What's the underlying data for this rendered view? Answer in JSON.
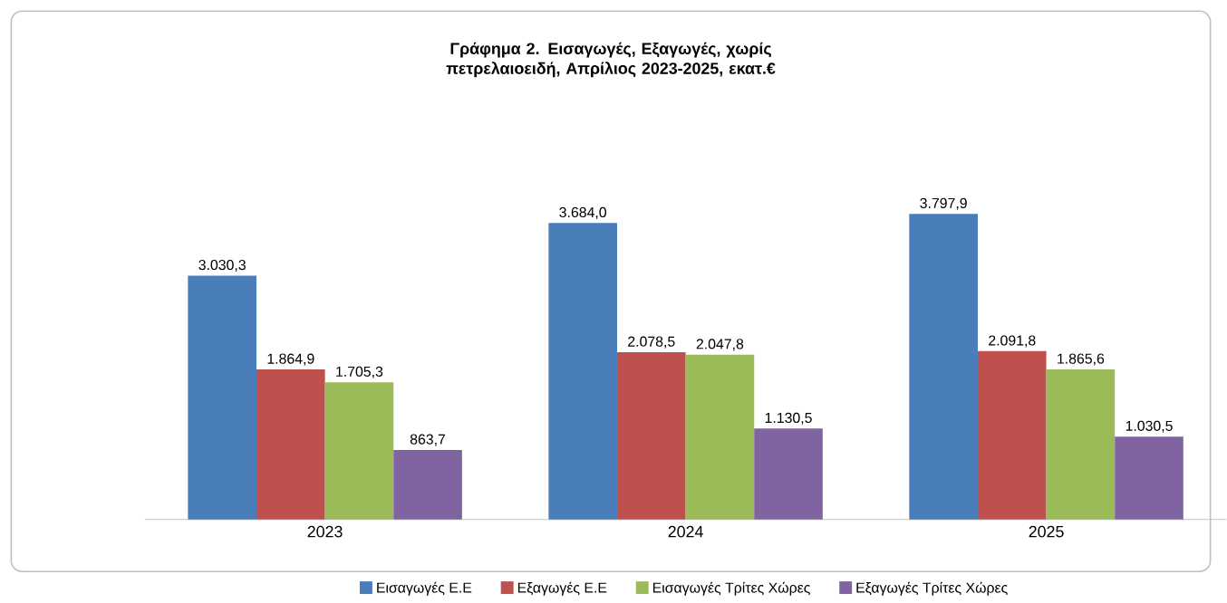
{
  "chart_data": {
    "type": "bar",
    "title": "Γράφημα 2. Εισαγωγές, Εξαγωγές, χωρίς πετρελαιοειδή, Απρίλιος 2023-2025, εκατ.€",
    "categories": [
      "2023",
      "2024",
      "2025"
    ],
    "series": [
      {
        "name": "Εισαγωγές Ε.Ε",
        "color": "#4a7ebb",
        "values": [
          3030.3,
          3684.0,
          3797.9
        ],
        "value_labels": [
          "3.030,3",
          "3.684,0",
          "3.797,9"
        ]
      },
      {
        "name": "Εξαγωγές  Ε.Ε",
        "color": "#c0504d",
        "values": [
          1864.9,
          2078.5,
          2091.8
        ],
        "value_labels": [
          "1.864,9",
          "2.078,5",
          "2.091,8"
        ]
      },
      {
        "name": "Εισαγωγές Τρίτες Χώρες",
        "color": "#9bbb59",
        "values": [
          1705.3,
          2047.8,
          1865.6
        ],
        "value_labels": [
          "1.705,3",
          "2.047,8",
          "1.865,6"
        ]
      },
      {
        "name": "Εξαγωγές Τρίτες Χώρες",
        "color": "#8064a2",
        "values": [
          863.7,
          1130.5,
          1030.5
        ],
        "value_labels": [
          "863,7",
          "1.130,5",
          "1.030,5"
        ]
      }
    ],
    "legend": "bottom"
  }
}
